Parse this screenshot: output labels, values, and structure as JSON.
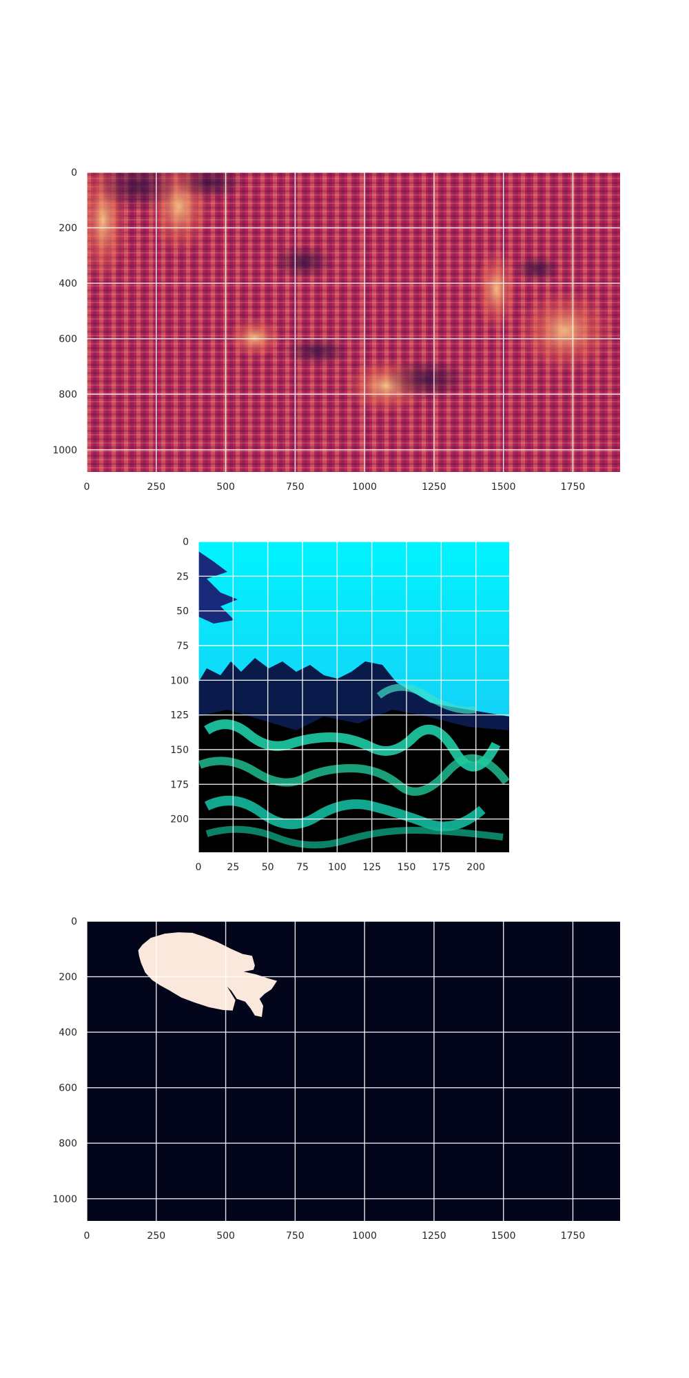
{
  "chart_data": [
    {
      "type": "heatmap",
      "title": "",
      "xlabel": "",
      "ylabel": "",
      "xlim": [
        0,
        1920
      ],
      "ylim": [
        1080,
        0
      ],
      "x_ticks": [
        0,
        250,
        500,
        750,
        1000,
        1250,
        1500,
        1750
      ],
      "y_ticks": [
        0,
        200,
        400,
        600,
        800,
        1000
      ],
      "grid": true,
      "colormap": "rocket",
      "base_color": "#b8245a"
    },
    {
      "type": "image",
      "title": "",
      "xlabel": "",
      "ylabel": "",
      "xlim": [
        0,
        224
      ],
      "ylim": [
        224,
        0
      ],
      "x_ticks": [
        0,
        25,
        50,
        75,
        100,
        125,
        150,
        175,
        200
      ],
      "y_ticks": [
        0,
        25,
        50,
        75,
        100,
        125,
        150,
        175,
        200
      ],
      "grid": true,
      "colors": {
        "water": "#00f0ff",
        "reef": "#00c8a0",
        "shadow": "#000000",
        "foliage": "#1a2a8a"
      }
    },
    {
      "type": "heatmap",
      "title": "",
      "xlabel": "",
      "ylabel": "",
      "xlim": [
        0,
        1920
      ],
      "ylim": [
        1080,
        0
      ],
      "x_ticks": [
        0,
        250,
        500,
        750,
        1000,
        1250,
        1500,
        1750
      ],
      "y_ticks": [
        0,
        200,
        400,
        600,
        800,
        1000
      ],
      "grid": true,
      "colors": {
        "background": "#03051a",
        "mask": "#fae8dc"
      },
      "mask_polygon": [
        [
          185,
          105
        ],
        [
          200,
          85
        ],
        [
          230,
          60
        ],
        [
          280,
          45
        ],
        [
          330,
          40
        ],
        [
          380,
          42
        ],
        [
          420,
          55
        ],
        [
          470,
          75
        ],
        [
          520,
          100
        ],
        [
          560,
          118
        ],
        [
          595,
          125
        ],
        [
          605,
          160
        ],
        [
          600,
          175
        ],
        [
          565,
          182
        ],
        [
          610,
          192
        ],
        [
          650,
          205
        ],
        [
          685,
          215
        ],
        [
          665,
          245
        ],
        [
          640,
          262
        ],
        [
          622,
          280
        ],
        [
          635,
          305
        ],
        [
          630,
          345
        ],
        [
          605,
          340
        ],
        [
          590,
          315
        ],
        [
          570,
          290
        ],
        [
          540,
          280
        ],
        [
          520,
          250
        ],
        [
          505,
          235
        ],
        [
          535,
          285
        ],
        [
          525,
          322
        ],
        [
          490,
          320
        ],
        [
          440,
          310
        ],
        [
          385,
          292
        ],
        [
          340,
          275
        ],
        [
          295,
          248
        ],
        [
          265,
          232
        ],
        [
          235,
          212
        ],
        [
          210,
          185
        ],
        [
          195,
          150
        ],
        [
          188,
          125
        ]
      ]
    }
  ]
}
